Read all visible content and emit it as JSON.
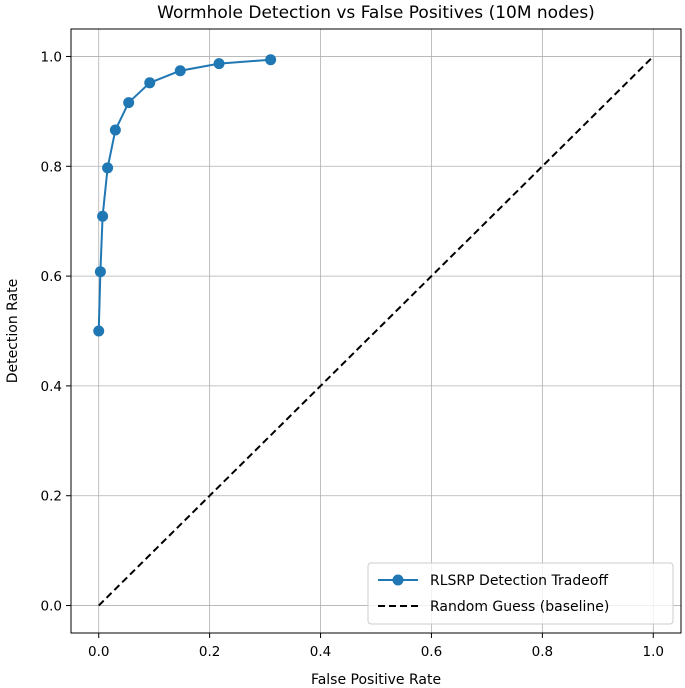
{
  "chart_data": {
    "type": "line",
    "title": "Wormhole Detection vs False Positives (10M nodes)",
    "xlabel": "False Positive Rate",
    "ylabel": "Detection Rate",
    "xlim": [
      -0.05,
      1.05
    ],
    "ylim": [
      -0.05,
      1.05
    ],
    "xticks": [
      0.0,
      0.2,
      0.4,
      0.6,
      0.8,
      1.0
    ],
    "xtick_labels": [
      "0.0",
      "0.2",
      "0.4",
      "0.6",
      "0.8",
      "1.0"
    ],
    "yticks": [
      0.0,
      0.2,
      0.4,
      0.6,
      0.8,
      1.0
    ],
    "ytick_labels": [
      "0.0",
      "0.2",
      "0.4",
      "0.6",
      "0.8",
      "1.0"
    ],
    "grid": true,
    "legend_position": "lower-right",
    "series": [
      {
        "name": "RLSRP Detection Tradeoff",
        "style": "solid-with-circle-markers",
        "color": "#1f77b4",
        "x": [
          0.0,
          0.003,
          0.007,
          0.016,
          0.03,
          0.054,
          0.092,
          0.147,
          0.217,
          0.31
        ],
        "y": [
          0.5,
          0.608,
          0.709,
          0.797,
          0.866,
          0.916,
          0.952,
          0.974,
          0.987,
          0.994
        ]
      },
      {
        "name": "Random Guess (baseline)",
        "style": "dashed",
        "color": "#000000",
        "x": [
          0.0,
          1.0
        ],
        "y": [
          0.0,
          1.0
        ]
      }
    ]
  }
}
